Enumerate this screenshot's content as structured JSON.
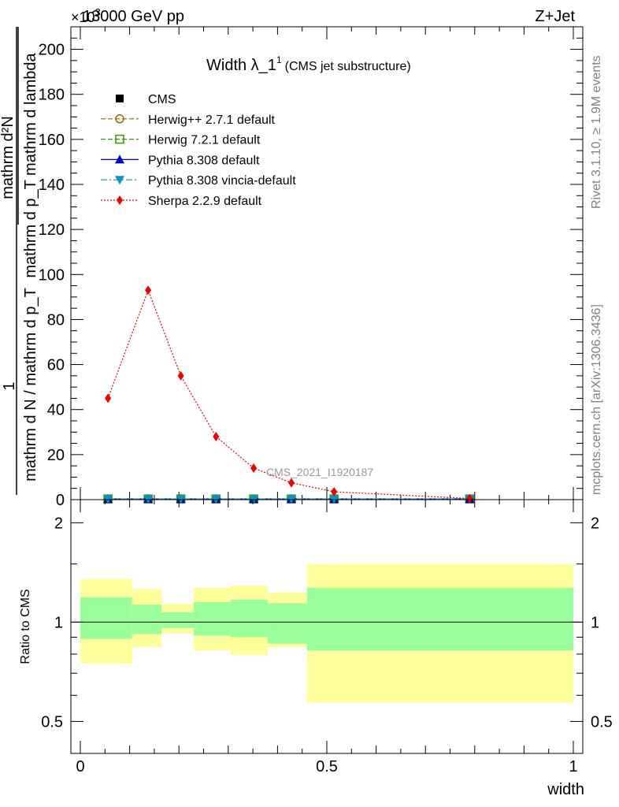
{
  "header": {
    "energy_label": "13000 GeV pp",
    "process_label": "Z+Jet",
    "exponent_label": "×10",
    "exponent_power": "3"
  },
  "side_labels": {
    "rivet": "Rivet 3.1.10, ≥ 1.9M events",
    "mcplots": "mcplots.cern.ch [arXiv:1306.3436]"
  },
  "chart_data": [
    {
      "type": "line",
      "title": "Width λ_1",
      "title_superscript": "1",
      "subtitle": "(CMS jet substructure)",
      "xlabel": "width",
      "ylabel_numerator": "1",
      "ylabel_denominator": "mathrm d N / mathrm d p_T",
      "ylabel_main_numerator": "mathrm d²N",
      "ylabel_main_denominator": "mathrm d p_T mathrm d lambda",
      "watermark": "CMS_2021_I1920187",
      "xlim": [
        0,
        1
      ],
      "ylim": [
        0,
        210
      ],
      "y_scale_note": "values ×10^3",
      "yticks": [
        0,
        20,
        40,
        60,
        80,
        100,
        120,
        140,
        160,
        180,
        200
      ],
      "x": [
        0.055,
        0.135,
        0.2,
        0.27,
        0.345,
        0.42,
        0.505,
        0.775
      ],
      "series": [
        {
          "name": "CMS",
          "style": "square-marker",
          "color": "#000000",
          "values": [
            0.3,
            0.3,
            0.3,
            0.3,
            0.3,
            0.3,
            0.3,
            0.3
          ]
        },
        {
          "name": "Herwig++ 2.7.1 default",
          "style": "dashed-open-circle",
          "color": "#996600",
          "values": [
            0.3,
            0.3,
            0.3,
            0.3,
            0.3,
            0.3,
            0.3,
            0.3
          ]
        },
        {
          "name": "Herwig 7.2.1 default",
          "style": "dashed-open-square",
          "color": "#339900",
          "values": [
            0.3,
            0.3,
            0.3,
            0.3,
            0.3,
            0.3,
            0.3,
            0.3
          ]
        },
        {
          "name": "Pythia 8.308 default",
          "style": "solid-triangle-up",
          "color": "#0000cc",
          "values": [
            0.3,
            0.3,
            0.3,
            0.3,
            0.3,
            0.3,
            0.3,
            0.3
          ]
        },
        {
          "name": "Pythia 8.308 vincia-default",
          "style": "dashdot-triangle-down",
          "color": "#0099bb",
          "values": [
            0.3,
            0.3,
            0.3,
            0.3,
            0.3,
            0.3,
            0.3,
            0.3
          ]
        },
        {
          "name": "Sherpa 2.2.9 default",
          "style": "dotted-diamond",
          "color": "#ee0000",
          "values": [
            45,
            93,
            55,
            28,
            14,
            7.5,
            3.5,
            0.5
          ]
        }
      ]
    },
    {
      "type": "area",
      "ylabel": "Ratio to CMS",
      "xlabel": "width",
      "xlim": [
        0,
        1
      ],
      "ylim": [
        0.4,
        2.35
      ],
      "y_scale": "log",
      "yticks": [
        0.5,
        1,
        2
      ],
      "xticks": [
        0,
        0.5,
        1
      ],
      "xtick_labels": [
        "0",
        "0.5",
        "1"
      ],
      "reference_line": 1,
      "bins": [
        {
          "lo": 0.0,
          "hi": 0.105,
          "stat_lo": 0.89,
          "stat_hi": 1.19,
          "tot_lo": 0.75,
          "tot_hi": 1.35
        },
        {
          "lo": 0.105,
          "hi": 0.165,
          "stat_lo": 0.92,
          "stat_hi": 1.13,
          "tot_lo": 0.84,
          "tot_hi": 1.26
        },
        {
          "lo": 0.165,
          "hi": 0.23,
          "stat_lo": 0.96,
          "stat_hi": 1.07,
          "tot_lo": 0.925,
          "tot_hi": 1.135
        },
        {
          "lo": 0.23,
          "hi": 0.305,
          "stat_lo": 0.91,
          "stat_hi": 1.15,
          "tot_lo": 0.82,
          "tot_hi": 1.27
        },
        {
          "lo": 0.305,
          "hi": 0.38,
          "stat_lo": 0.9,
          "stat_hi": 1.17,
          "tot_lo": 0.795,
          "tot_hi": 1.29
        },
        {
          "lo": 0.38,
          "hi": 0.46,
          "stat_lo": 0.86,
          "stat_hi": 1.14,
          "tot_lo": 0.84,
          "tot_hi": 1.23
        },
        {
          "lo": 0.46,
          "hi": 1.0,
          "stat_lo": 0.82,
          "stat_hi": 1.27,
          "tot_lo": 0.57,
          "tot_hi": 1.5
        }
      ],
      "stat_color": "#99ff99",
      "total_color": "#ffff99"
    }
  ]
}
